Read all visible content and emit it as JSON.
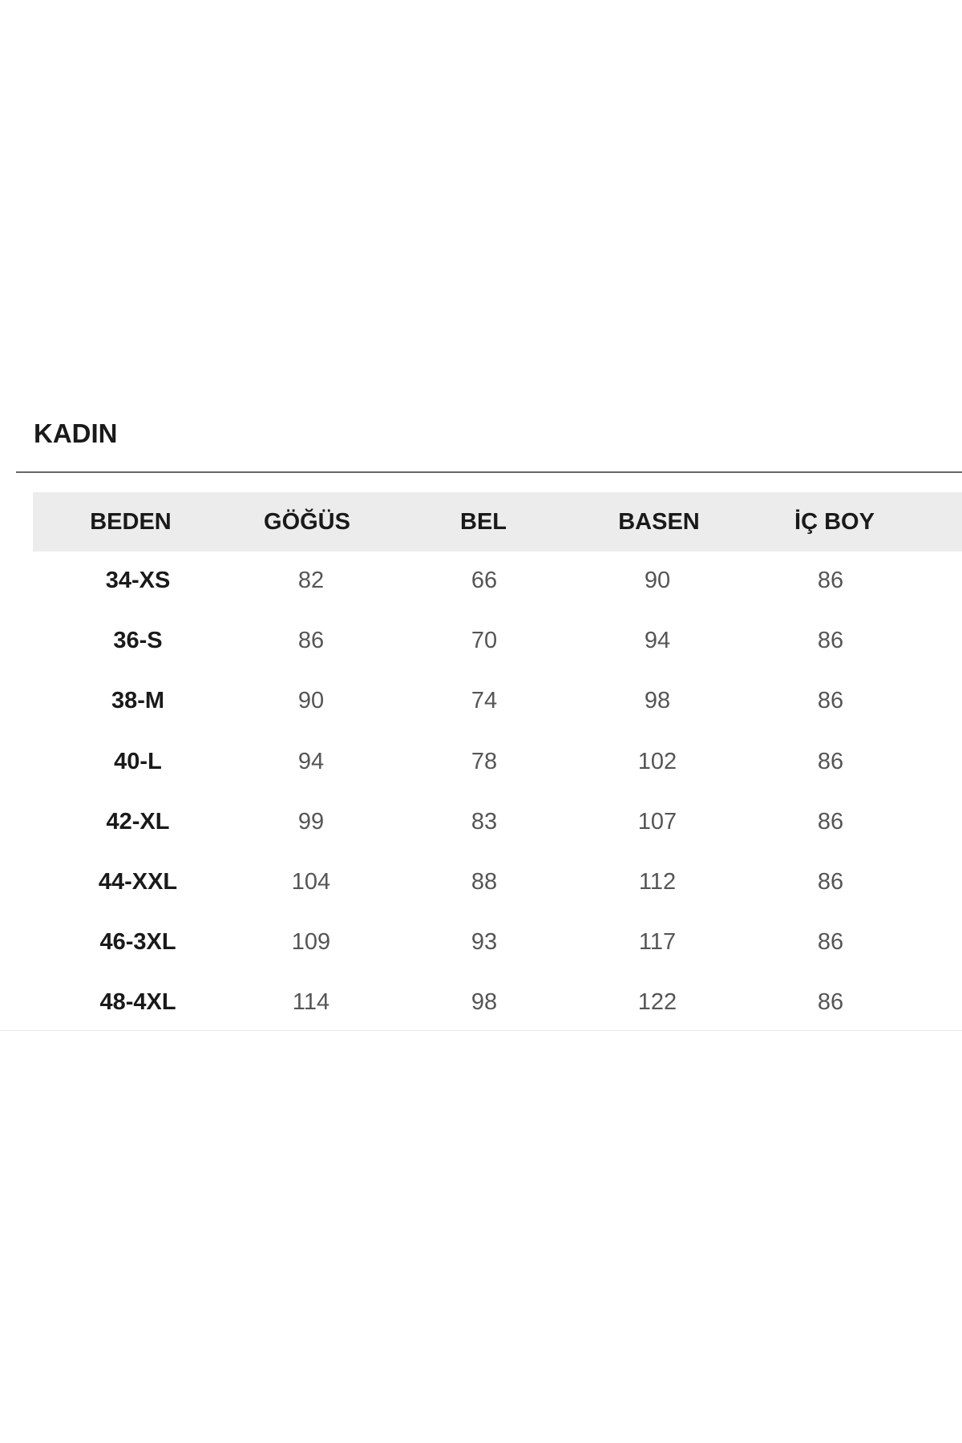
{
  "title": "KADIN",
  "table": {
    "headers": [
      "BEDEN",
      "GÖĞÜS",
      "BEL",
      "BASEN",
      "İÇ BOY"
    ],
    "rows": [
      [
        "34-XS",
        "82",
        "66",
        "90",
        "86"
      ],
      [
        "36-S",
        "86",
        "70",
        "94",
        "86"
      ],
      [
        "38-M",
        "90",
        "74",
        "98",
        "86"
      ],
      [
        "40-L",
        "94",
        "78",
        "102",
        "86"
      ],
      [
        "42-XL",
        "99",
        "83",
        "107",
        "86"
      ],
      [
        "44-XXL",
        "104",
        "88",
        "112",
        "86"
      ],
      [
        "46-3XL",
        "109",
        "93",
        "117",
        "86"
      ],
      [
        "48-4XL",
        "114",
        "98",
        "122",
        "86"
      ]
    ]
  }
}
